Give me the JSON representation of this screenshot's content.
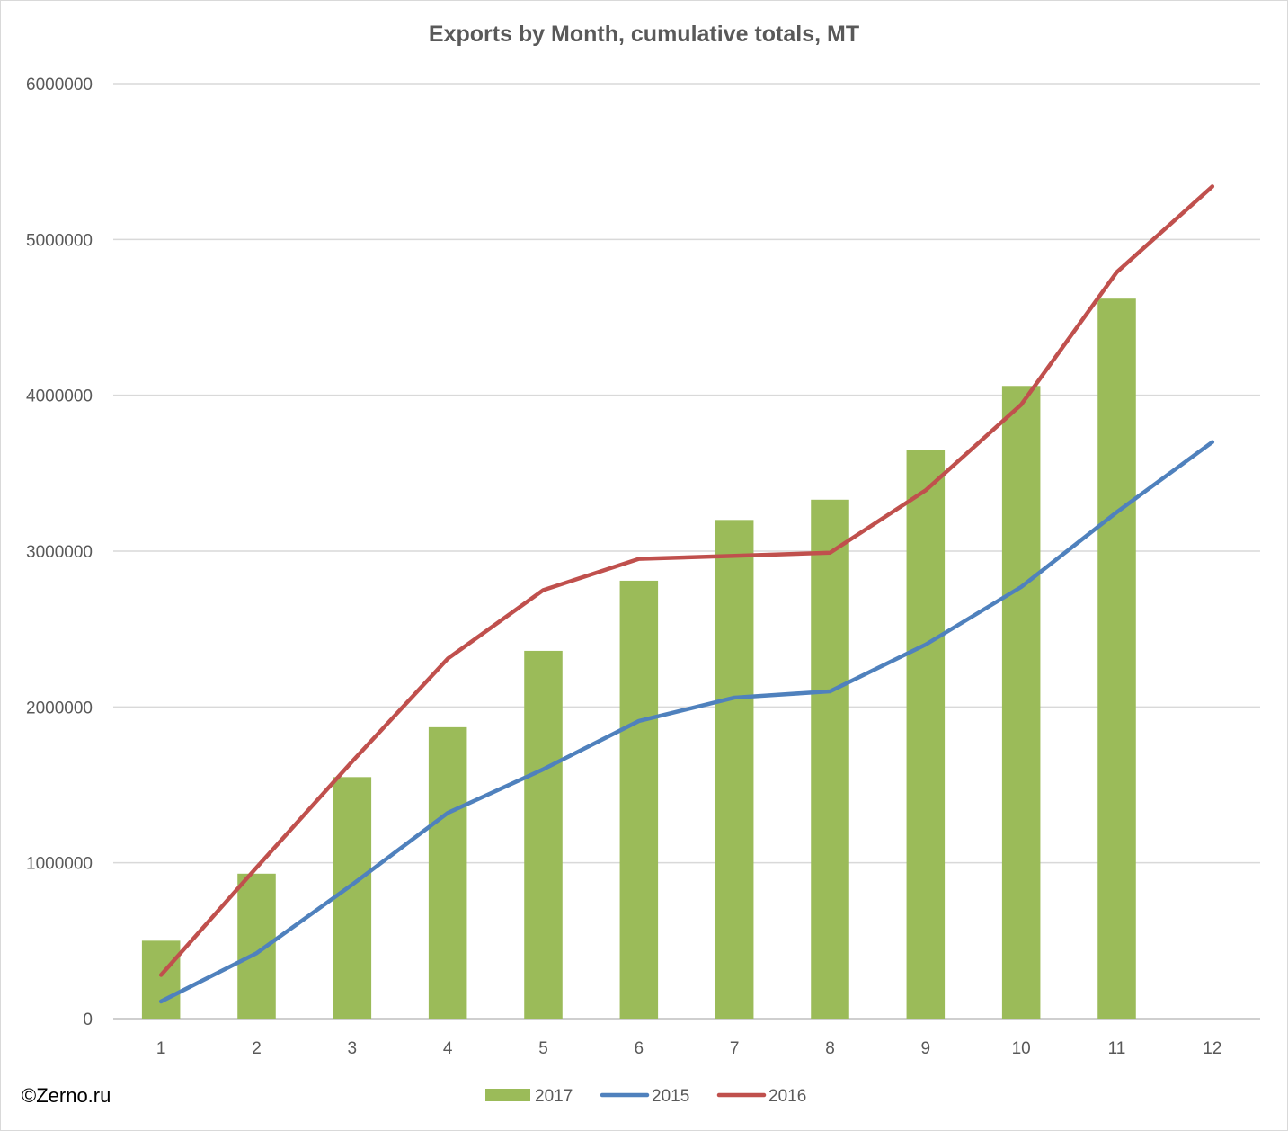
{
  "chart_data": {
    "type": "bar",
    "title": "Exports by Month, cumulative totals, MT",
    "xlabel": "",
    "ylabel": "",
    "categories": [
      "1",
      "2",
      "3",
      "4",
      "5",
      "6",
      "7",
      "8",
      "9",
      "10",
      "11",
      "12"
    ],
    "ylim": [
      0,
      6000000
    ],
    "yticks": [
      0,
      1000000,
      2000000,
      3000000,
      4000000,
      5000000,
      6000000
    ],
    "ytick_labels": [
      "0",
      "1000000",
      "2000000",
      "3000000",
      "4000000",
      "5000000",
      "6000000"
    ],
    "grid": true,
    "legend_position": "bottom",
    "series": [
      {
        "name": "2017",
        "kind": "bar",
        "color": "#9bbb59",
        "values": [
          500000,
          930000,
          1550000,
          1870000,
          2360000,
          2810000,
          3200000,
          3330000,
          3650000,
          4060000,
          4620000,
          null
        ]
      },
      {
        "name": "2015",
        "kind": "line",
        "color": "#4f81bd",
        "values": [
          110000,
          420000,
          860000,
          1320000,
          1600000,
          1910000,
          2060000,
          2100000,
          2400000,
          2770000,
          3250000,
          3700000
        ]
      },
      {
        "name": "2016",
        "kind": "line",
        "color": "#c0504d",
        "values": [
          280000,
          970000,
          1650000,
          2310000,
          2750000,
          2950000,
          2970000,
          2990000,
          3390000,
          3940000,
          4790000,
          5340000
        ]
      }
    ]
  },
  "credit": "©Zerno.ru"
}
